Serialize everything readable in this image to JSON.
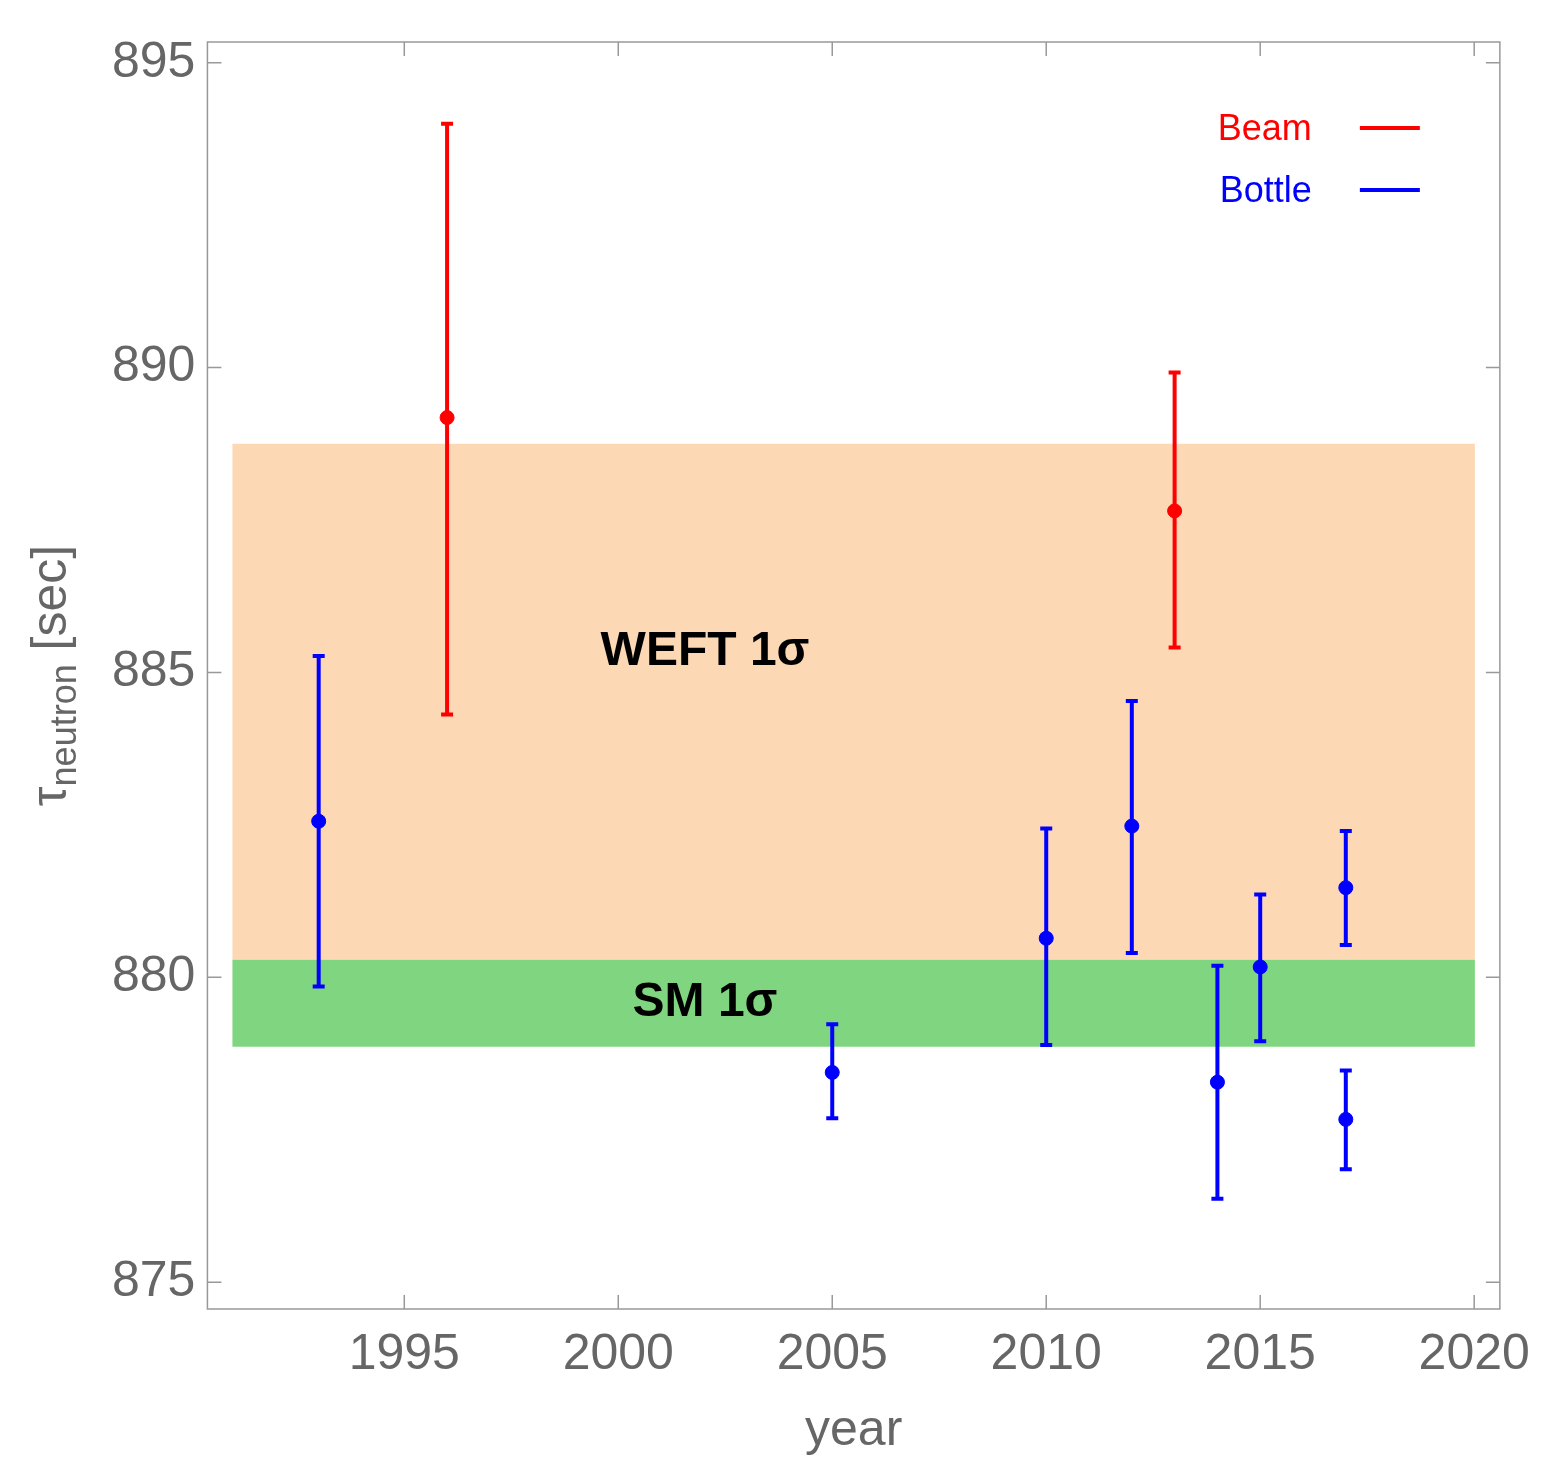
{
  "chart_data": {
    "type": "scatter",
    "xlabel": "year",
    "ylabel": "τ$_{neutron}$ [sec]",
    "xlim": [
      1990.4,
      2020.6
    ],
    "xticks": [
      1995,
      2000,
      2005,
      2010,
      2015,
      2020
    ],
    "ylim": [
      874.56,
      895.34
    ],
    "yticks": [
      875,
      880,
      885,
      890,
      895
    ],
    "series": [
      {
        "name": "Beam",
        "color": "#ff0000",
        "x": [
          1996,
          2013
        ],
        "values": [
          889.18,
          887.65
        ],
        "errors": [
          [
            884.31,
            894.0
          ],
          [
            885.41,
            889.92
          ]
        ]
      },
      {
        "name": "Bottle",
        "color": "#0000ff",
        "x": [
          1993,
          2005,
          2010,
          2012,
          2014,
          2015,
          2017,
          2017
        ],
        "values": [
          882.56,
          878.44,
          880.64,
          882.48,
          878.28,
          880.17,
          881.47,
          877.67
        ],
        "errors": [
          [
            879.85,
            885.27
          ],
          [
            877.69,
            879.23
          ],
          [
            878.89,
            882.44
          ],
          [
            880.4,
            884.53
          ],
          [
            876.37,
            880.19
          ],
          [
            878.95,
            881.36
          ],
          [
            880.53,
            882.4
          ],
          [
            876.85,
            878.47
          ]
        ]
      }
    ],
    "bands": [
      {
        "axis": "y",
        "from": 880.29,
        "to": 888.75,
        "label": "WEFT 1σ",
        "color": "#fdd8b4"
      },
      {
        "axis": "y",
        "from": 878.86,
        "to": 880.29,
        "label": "SM 1σ",
        "color": "#80d680"
      }
    ],
    "marker": "circle",
    "grid": false,
    "legend": "top right"
  }
}
